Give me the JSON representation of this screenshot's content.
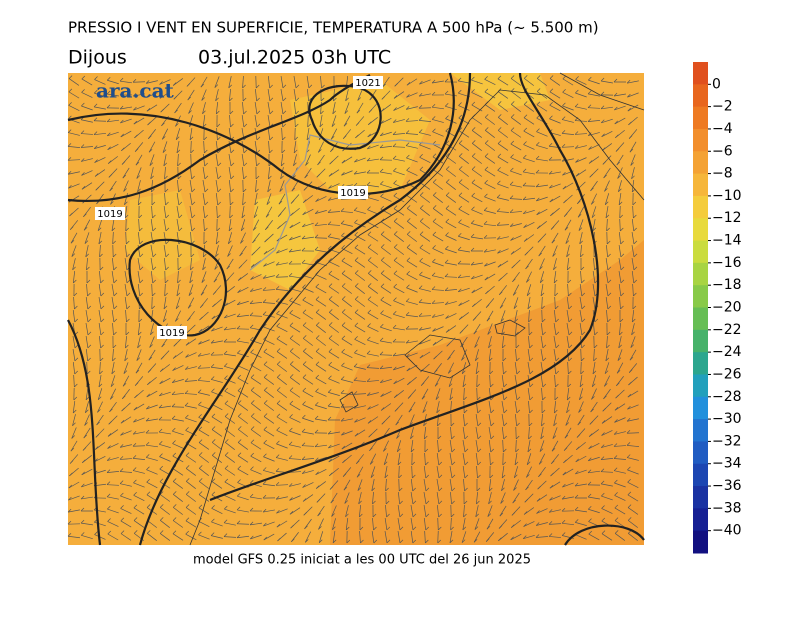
{
  "title": "PRESSIO I VENT EN SUPERFICIE, TEMPERATURA A 500 hPa (~ 5.500 m)",
  "day": "Dijous",
  "datetime": "03.jul.2025 03h  UTC",
  "logo": "ara.cat",
  "footer": "model GFS 0.25 iniciat a les 00 UTC del 26 jun 2025",
  "isobar_labels": [
    "1021",
    "1019",
    "1019",
    "1019"
  ],
  "colorbar": {
    "lim": [
      -42,
      2
    ],
    "colors": [
      "#e0501e",
      "#e8661e",
      "#ee7a22",
      "#f28e2c",
      "#f4a234",
      "#f6b63a",
      "#f4cc3c",
      "#e8da3c",
      "#cadc3e",
      "#a8d442",
      "#88ca48",
      "#66be54",
      "#46b26a",
      "#2ca68e",
      "#22a0bc",
      "#2290dc",
      "#2274d0",
      "#205cc2",
      "#1c46b2",
      "#1a32a2",
      "#162094",
      "#121080"
    ],
    "ticks": [
      {
        "value": 0,
        "label": "0"
      },
      {
        "value": -2,
        "label": "−2"
      },
      {
        "value": -4,
        "label": "−4"
      },
      {
        "value": -6,
        "label": "−6"
      },
      {
        "value": -8,
        "label": "−8"
      },
      {
        "value": -10,
        "label": "−10"
      },
      {
        "value": -12,
        "label": "−12"
      },
      {
        "value": -14,
        "label": "−14"
      },
      {
        "value": -16,
        "label": "−16"
      },
      {
        "value": -18,
        "label": "−18"
      },
      {
        "value": -20,
        "label": "−20"
      },
      {
        "value": -22,
        "label": "−22"
      },
      {
        "value": -24,
        "label": "−24"
      },
      {
        "value": -26,
        "label": "−26"
      },
      {
        "value": -28,
        "label": "−28"
      },
      {
        "value": -30,
        "label": "−30"
      },
      {
        "value": -32,
        "label": "−32"
      },
      {
        "value": -34,
        "label": "−34"
      },
      {
        "value": -36,
        "label": "−36"
      },
      {
        "value": -38,
        "label": "−38"
      },
      {
        "value": -40,
        "label": "−40"
      }
    ]
  }
}
